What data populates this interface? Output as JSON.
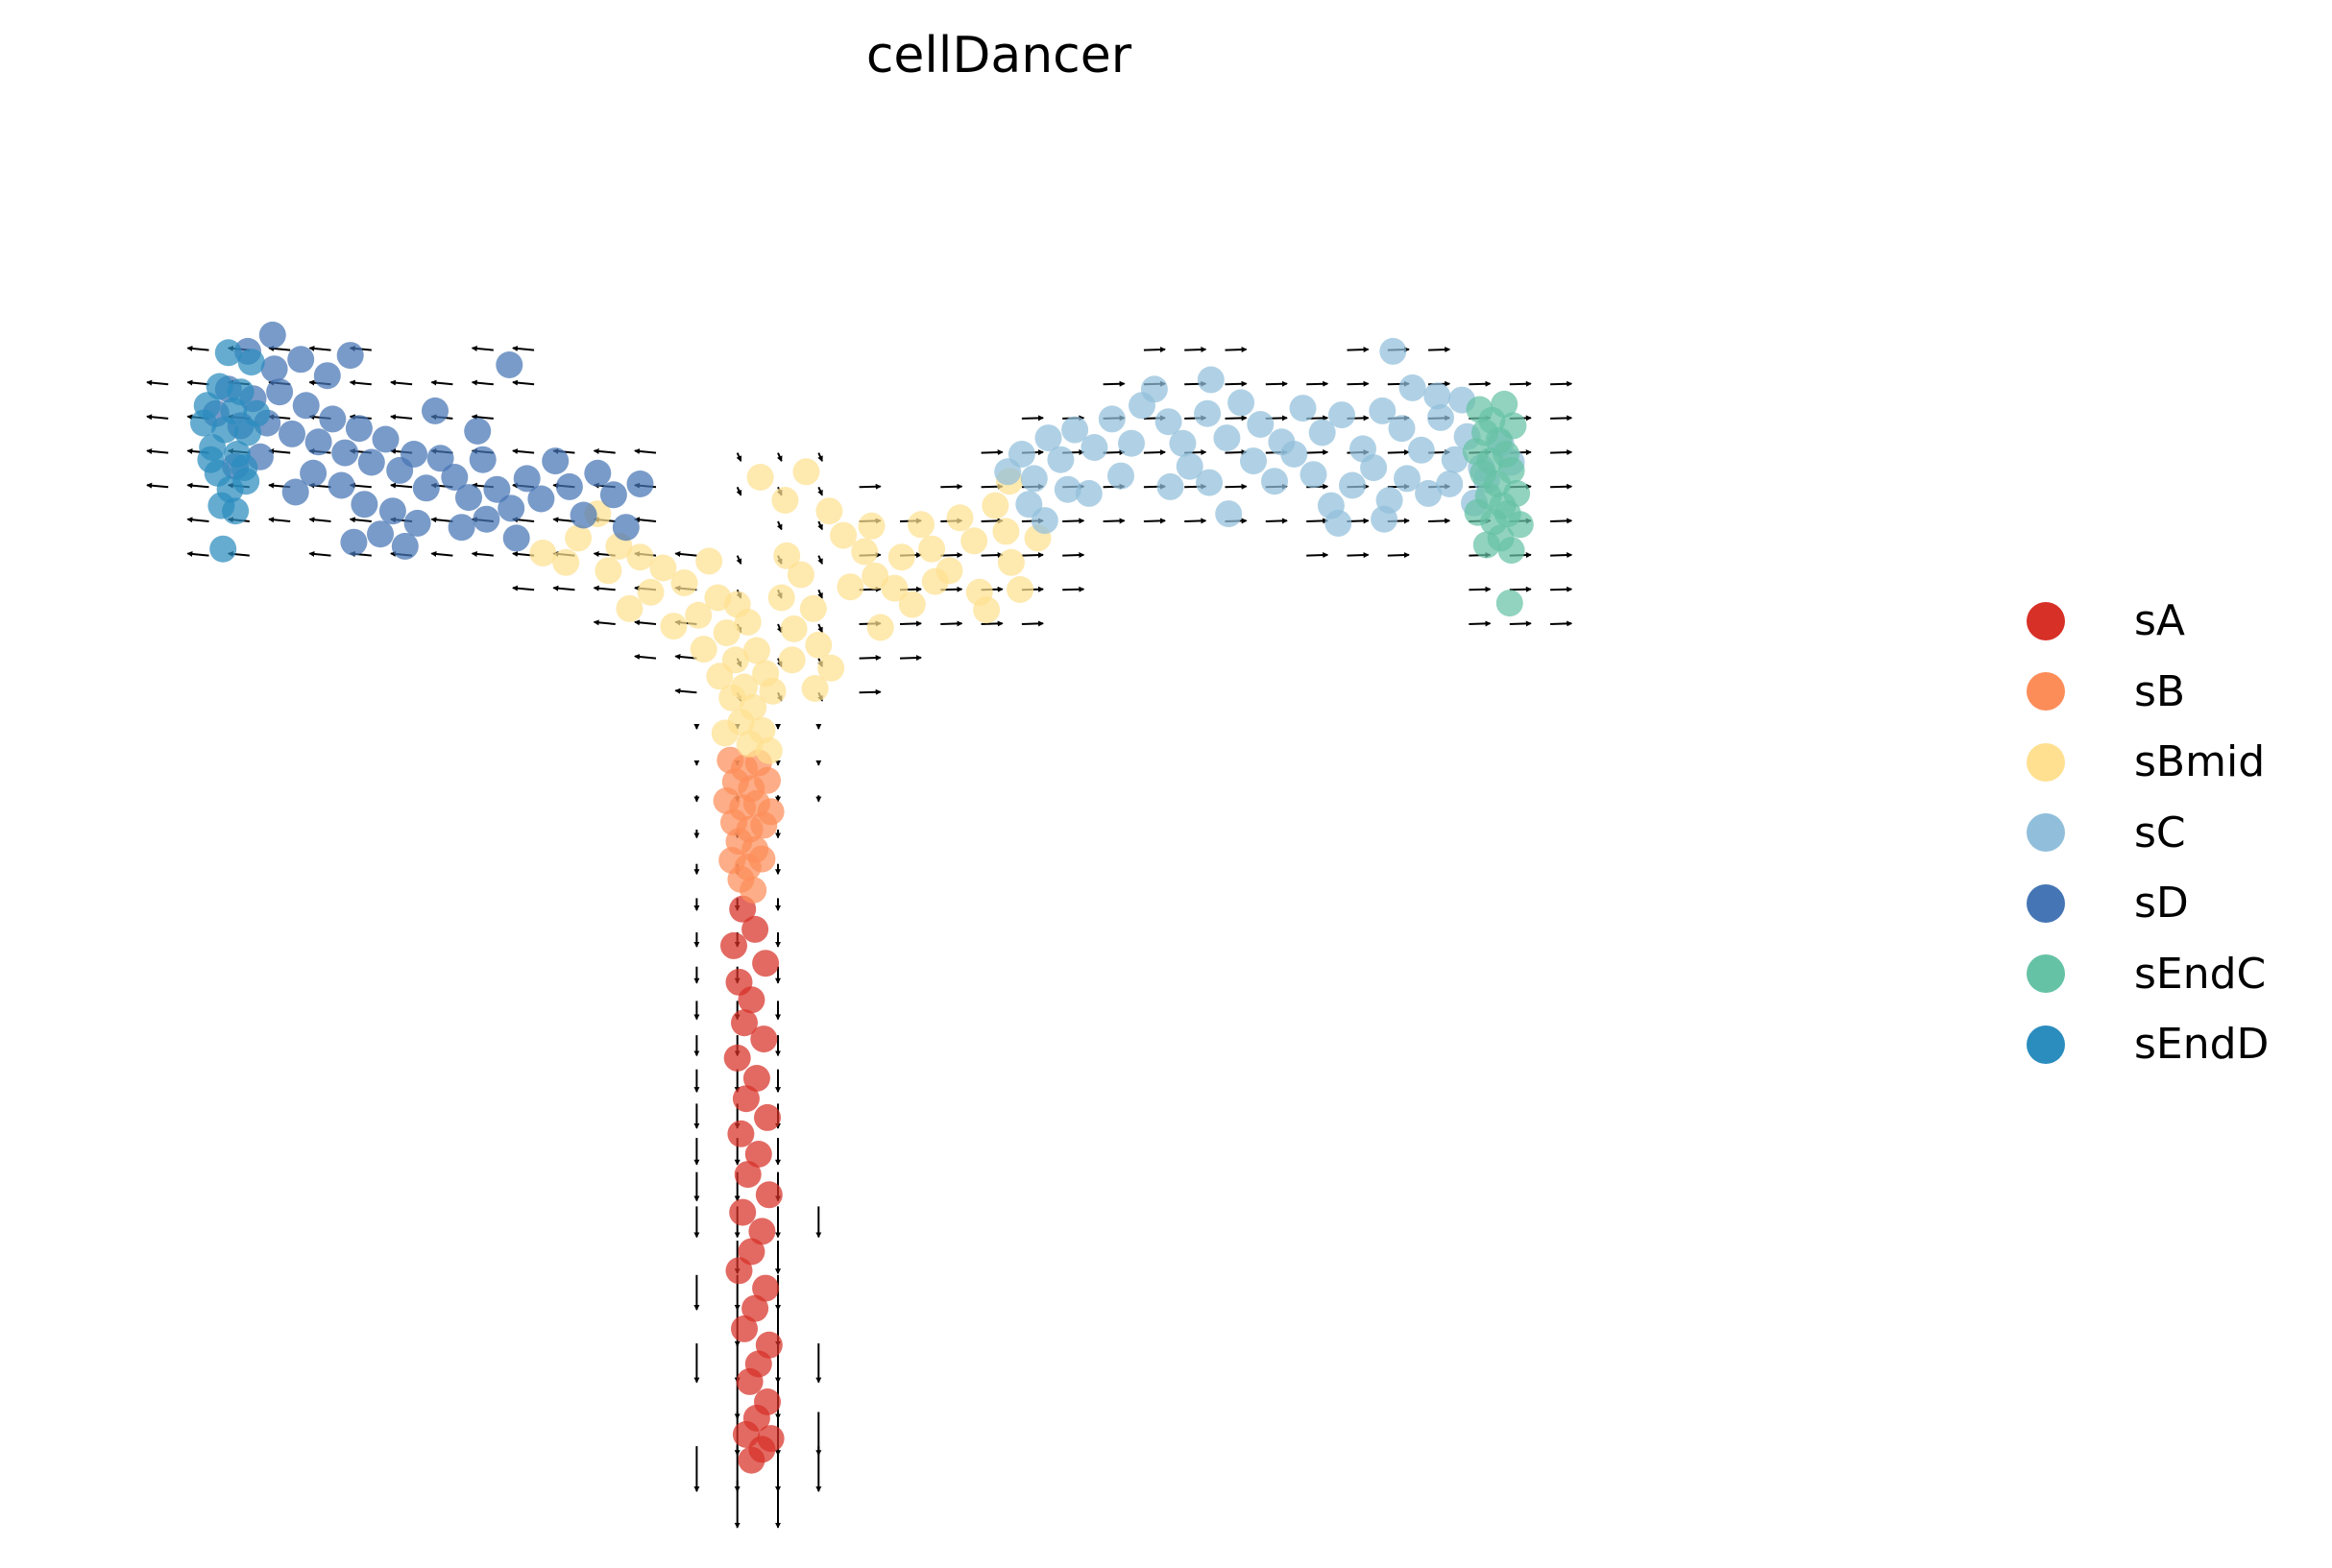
{
  "chart_data": {
    "type": "scatter",
    "title": "cellDancer",
    "xlabel": "",
    "ylabel": "",
    "grid": false,
    "axes_visible": false,
    "xlim": [
      0,
      100
    ],
    "ylim": [
      0,
      100
    ],
    "legend_position": "right",
    "overlay": "velocity arrows (quiver grid)",
    "series": [
      {
        "name": "sA",
        "color": "#d73027",
        "points": [
          [
            35.5,
            44.2
          ],
          [
            36.2,
            42.7
          ],
          [
            35.0,
            41.5
          ],
          [
            36.8,
            40.2
          ],
          [
            35.3,
            38.8
          ],
          [
            36.0,
            37.5
          ],
          [
            35.6,
            35.8
          ],
          [
            36.7,
            34.6
          ],
          [
            35.2,
            33.2
          ],
          [
            36.3,
            31.7
          ],
          [
            35.7,
            30.2
          ],
          [
            36.9,
            28.8
          ],
          [
            35.4,
            27.6
          ],
          [
            36.4,
            26.1
          ],
          [
            35.8,
            24.6
          ],
          [
            37.0,
            23.1
          ],
          [
            35.5,
            21.8
          ],
          [
            36.6,
            20.4
          ],
          [
            36.0,
            18.9
          ],
          [
            35.3,
            17.5
          ],
          [
            36.8,
            16.2
          ],
          [
            36.2,
            14.7
          ],
          [
            35.6,
            13.2
          ],
          [
            37.0,
            12.0
          ],
          [
            36.4,
            10.6
          ],
          [
            35.9,
            9.3
          ],
          [
            36.9,
            7.8
          ],
          [
            36.3,
            6.6
          ],
          [
            35.7,
            5.4
          ],
          [
            36.6,
            4.3
          ],
          [
            37.1,
            5.1
          ],
          [
            36.0,
            3.5
          ]
        ]
      },
      {
        "name": "sB",
        "color": "#fc8d59",
        "points": [
          [
            34.8,
            55.2
          ],
          [
            35.6,
            54.6
          ],
          [
            36.4,
            55.0
          ],
          [
            35.1,
            53.6
          ],
          [
            36.0,
            53.1
          ],
          [
            36.9,
            53.7
          ],
          [
            34.6,
            52.2
          ],
          [
            35.5,
            51.7
          ],
          [
            36.3,
            52.0
          ],
          [
            37.1,
            51.4
          ],
          [
            35.0,
            50.6
          ],
          [
            35.9,
            50.1
          ],
          [
            36.7,
            50.4
          ],
          [
            35.3,
            49.2
          ],
          [
            36.2,
            48.6
          ],
          [
            34.9,
            47.8
          ],
          [
            35.8,
            47.3
          ],
          [
            36.6,
            47.9
          ],
          [
            35.4,
            46.4
          ],
          [
            36.1,
            45.6
          ]
        ]
      },
      {
        "name": "sBmid",
        "color": "#fee090",
        "points": [
          [
            27.3,
            73.4
          ],
          [
            26.2,
            71.6
          ],
          [
            28.5,
            71.0
          ],
          [
            25.5,
            69.8
          ],
          [
            29.7,
            70.2
          ],
          [
            27.9,
            69.2
          ],
          [
            31.0,
            69.4
          ],
          [
            24.2,
            70.5
          ],
          [
            33.6,
            69.9
          ],
          [
            32.2,
            68.3
          ],
          [
            30.3,
            67.6
          ],
          [
            29.1,
            66.4
          ],
          [
            34.1,
            67.2
          ],
          [
            33.0,
            65.9
          ],
          [
            35.2,
            66.7
          ],
          [
            31.6,
            65.1
          ],
          [
            34.6,
            64.6
          ],
          [
            35.8,
            65.4
          ],
          [
            33.3,
            63.4
          ],
          [
            35.1,
            62.6
          ],
          [
            36.3,
            63.3
          ],
          [
            34.2,
            61.4
          ],
          [
            35.6,
            60.6
          ],
          [
            36.8,
            61.6
          ],
          [
            34.9,
            59.8
          ],
          [
            36.1,
            59.1
          ],
          [
            37.2,
            60.3
          ],
          [
            35.4,
            58.0
          ],
          [
            36.6,
            57.4
          ],
          [
            34.5,
            57.2
          ],
          [
            35.9,
            56.4
          ],
          [
            37.0,
            55.9
          ],
          [
            38.0,
            70.3
          ],
          [
            38.8,
            68.9
          ],
          [
            37.7,
            67.2
          ],
          [
            39.5,
            66.4
          ],
          [
            38.4,
            64.9
          ],
          [
            39.8,
            63.7
          ],
          [
            38.3,
            62.6
          ],
          [
            40.5,
            62.0
          ],
          [
            39.6,
            60.5
          ],
          [
            41.2,
            71.8
          ],
          [
            42.4,
            70.6
          ],
          [
            43.0,
            68.8
          ],
          [
            44.1,
            67.9
          ],
          [
            45.6,
            72.6
          ],
          [
            46.2,
            70.8
          ],
          [
            47.8,
            73.1
          ],
          [
            48.6,
            71.4
          ],
          [
            49.8,
            74.0
          ],
          [
            50.4,
            72.1
          ],
          [
            47.2,
            69.2
          ],
          [
            48.9,
            67.6
          ],
          [
            50.7,
            69.8
          ],
          [
            49.3,
            66.3
          ],
          [
            51.2,
            67.8
          ],
          [
            37.9,
            74.4
          ],
          [
            39.1,
            76.5
          ],
          [
            36.5,
            76.1
          ],
          [
            40.4,
            73.6
          ],
          [
            42.8,
            72.5
          ],
          [
            44.5,
            70.2
          ],
          [
            41.6,
            68.0
          ],
          [
            45.1,
            66.7
          ],
          [
            46.4,
            68.4
          ],
          [
            52.2,
            71.6
          ],
          [
            50.6,
            75.8
          ],
          [
            43.3,
            65.0
          ]
        ]
      },
      {
        "name": "sC",
        "color": "#91bfdb",
        "points": [
          [
            50.5,
            76.5
          ],
          [
            51.3,
            77.8
          ],
          [
            52.0,
            76.0
          ],
          [
            52.8,
            79.0
          ],
          [
            53.5,
            77.4
          ],
          [
            54.3,
            79.6
          ],
          [
            55.4,
            78.3
          ],
          [
            53.9,
            75.2
          ],
          [
            51.7,
            74.1
          ],
          [
            52.6,
            72.9
          ],
          [
            56.4,
            80.4
          ],
          [
            58.1,
            81.4
          ],
          [
            59.6,
            80.2
          ],
          [
            60.4,
            78.6
          ],
          [
            61.8,
            80.8
          ],
          [
            62.9,
            79.0
          ],
          [
            63.7,
            81.6
          ],
          [
            64.8,
            80.0
          ],
          [
            66.0,
            78.7
          ],
          [
            67.2,
            81.2
          ],
          [
            68.3,
            79.4
          ],
          [
            69.4,
            80.7
          ],
          [
            70.6,
            78.2
          ],
          [
            71.7,
            81.0
          ],
          [
            72.8,
            79.7
          ],
          [
            73.9,
            78.1
          ],
          [
            75.0,
            80.5
          ],
          [
            75.8,
            77.4
          ],
          [
            76.5,
            79.1
          ],
          [
            77.3,
            76.8
          ],
          [
            78.4,
            78.6
          ],
          [
            79.0,
            77.2
          ],
          [
            72.3,
            85.4
          ],
          [
            73.4,
            82.7
          ],
          [
            62.0,
            83.3
          ],
          [
            58.8,
            82.6
          ],
          [
            56.9,
            76.2
          ],
          [
            59.7,
            75.4
          ],
          [
            60.8,
            76.9
          ],
          [
            61.9,
            75.7
          ],
          [
            64.4,
            77.3
          ],
          [
            65.6,
            75.8
          ],
          [
            66.7,
            77.8
          ],
          [
            67.8,
            76.3
          ],
          [
            68.8,
            74.0
          ],
          [
            70.0,
            75.5
          ],
          [
            71.2,
            76.8
          ],
          [
            72.1,
            74.4
          ],
          [
            73.1,
            76.0
          ],
          [
            74.3,
            74.9
          ],
          [
            75.5,
            75.6
          ],
          [
            76.9,
            74.2
          ],
          [
            77.6,
            75.9
          ],
          [
            69.2,
            72.7
          ],
          [
            71.8,
            73.0
          ],
          [
            74.8,
            82.1
          ],
          [
            76.2,
            81.8
          ],
          [
            63.0,
            73.4
          ],
          [
            57.5,
            78.6
          ],
          [
            55.1,
            74.9
          ]
        ]
      },
      {
        "name": "sD",
        "color": "#4575b4",
        "points": [
          [
            5.7,
            80.8
          ],
          [
            6.4,
            82.6
          ],
          [
            7.1,
            79.9
          ],
          [
            7.8,
            81.9
          ],
          [
            8.6,
            80.1
          ],
          [
            9.3,
            82.4
          ],
          [
            10.0,
            79.3
          ],
          [
            10.8,
            81.4
          ],
          [
            11.5,
            78.7
          ],
          [
            12.3,
            80.4
          ],
          [
            13.0,
            77.9
          ],
          [
            13.8,
            79.7
          ],
          [
            14.5,
            77.2
          ],
          [
            15.3,
            78.9
          ],
          [
            16.1,
            76.6
          ],
          [
            16.9,
            77.8
          ],
          [
            17.6,
            75.3
          ],
          [
            18.4,
            77.5
          ],
          [
            19.2,
            76.1
          ],
          [
            20.0,
            74.6
          ],
          [
            20.8,
            77.4
          ],
          [
            21.6,
            75.2
          ],
          [
            22.4,
            73.8
          ],
          [
            23.3,
            76.0
          ],
          [
            24.1,
            74.5
          ],
          [
            24.9,
            77.3
          ],
          [
            25.7,
            75.4
          ],
          [
            26.5,
            73.3
          ],
          [
            27.3,
            76.4
          ],
          [
            28.2,
            74.8
          ],
          [
            28.9,
            72.4
          ],
          [
            29.7,
            75.6
          ],
          [
            9.0,
            84.1
          ],
          [
            10.5,
            84.8
          ],
          [
            12.0,
            83.6
          ],
          [
            13.3,
            85.1
          ],
          [
            11.2,
            76.4
          ],
          [
            12.8,
            75.5
          ],
          [
            14.1,
            74.1
          ],
          [
            15.7,
            73.6
          ],
          [
            17.1,
            72.7
          ],
          [
            13.5,
            71.3
          ],
          [
            15.0,
            71.9
          ],
          [
            16.4,
            71.0
          ],
          [
            19.6,
            72.4
          ],
          [
            21.0,
            73.0
          ],
          [
            22.7,
            71.6
          ],
          [
            22.3,
            84.4
          ],
          [
            18.1,
            81.0
          ],
          [
            20.5,
            79.5
          ],
          [
            8.2,
            77.6
          ],
          [
            6.8,
            76.9
          ],
          [
            10.2,
            75.0
          ],
          [
            7.5,
            85.4
          ],
          [
            8.9,
            86.6
          ]
        ]
      },
      {
        "name": "sEndC",
        "color": "#66c2a5",
        "points": [
          [
            77.2,
            81.1
          ],
          [
            77.9,
            80.3
          ],
          [
            78.6,
            81.5
          ],
          [
            77.5,
            79.4
          ],
          [
            78.3,
            78.8
          ],
          [
            79.1,
            79.9
          ],
          [
            77.0,
            78.0
          ],
          [
            77.8,
            77.3
          ],
          [
            78.7,
            77.8
          ],
          [
            77.4,
            76.4
          ],
          [
            78.2,
            75.6
          ],
          [
            79.0,
            76.6
          ],
          [
            77.7,
            74.7
          ],
          [
            78.5,
            74.0
          ],
          [
            79.3,
            74.9
          ],
          [
            77.1,
            73.5
          ],
          [
            78.0,
            72.8
          ],
          [
            78.8,
            73.4
          ],
          [
            78.4,
            71.6
          ],
          [
            79.5,
            72.6
          ],
          [
            77.6,
            71.1
          ],
          [
            79.0,
            70.7
          ],
          [
            78.9,
            66.8
          ]
        ]
      },
      {
        "name": "sEndD",
        "color": "#2b8cbe",
        "points": [
          [
            5.2,
            81.4
          ],
          [
            5.9,
            82.8
          ],
          [
            6.7,
            81.0
          ],
          [
            6.2,
            79.6
          ],
          [
            5.5,
            78.3
          ],
          [
            6.9,
            77.8
          ],
          [
            5.8,
            76.4
          ],
          [
            6.5,
            75.2
          ],
          [
            7.3,
            76.8
          ],
          [
            7.5,
            79.4
          ],
          [
            7.7,
            84.6
          ],
          [
            6.0,
            74.0
          ],
          [
            5.0,
            80.1
          ],
          [
            7.1,
            82.4
          ],
          [
            6.4,
            85.3
          ],
          [
            8.0,
            80.8
          ],
          [
            5.4,
            77.4
          ],
          [
            6.8,
            73.6
          ],
          [
            7.4,
            75.8
          ],
          [
            6.1,
            70.8
          ]
        ]
      }
    ]
  }
}
